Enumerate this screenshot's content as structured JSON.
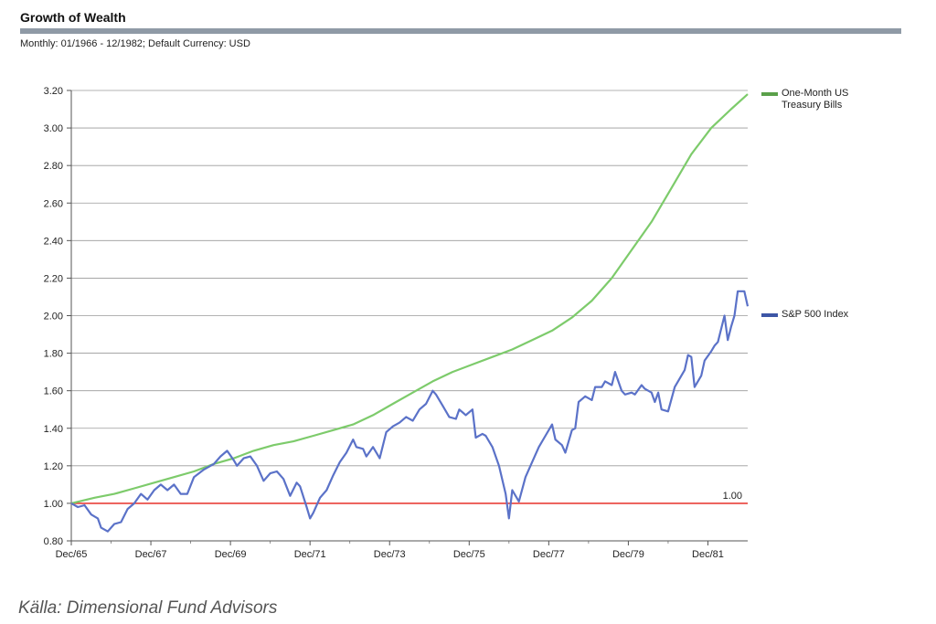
{
  "header": {
    "title": "Growth of Wealth",
    "subtitle": "Monthly: 01/1966 - 12/1982; Default Currency: USD"
  },
  "footer": {
    "source": "Källa: Dimensional Fund Advisors"
  },
  "chart_data": {
    "type": "line",
    "xlim": [
      1965.917,
      1982.917
    ],
    "ylim": [
      0.8,
      3.2
    ],
    "y_ticks": [
      "0.80",
      "1.00",
      "1.20",
      "1.40",
      "1.60",
      "1.80",
      "2.00",
      "2.20",
      "2.40",
      "2.60",
      "2.80",
      "3.00",
      "3.20"
    ],
    "x_ticks": [
      "Dec/65",
      "Dec/67",
      "Dec/69",
      "Dec/71",
      "Dec/73",
      "Dec/75",
      "Dec/77",
      "Dec/79",
      "Dec/81"
    ],
    "grid": true,
    "legend_position": "right",
    "reference_line": {
      "value": 1.0,
      "label": "1.00",
      "color": "#e8413a"
    },
    "series": [
      {
        "name": "One-Month US Treasury Bills",
        "legend_lines": [
          "One-Month US",
          "Treasury Bills"
        ],
        "color": "#7dcb6b",
        "legend_color": "#5aa04a",
        "points": [
          [
            1965.917,
            1.0
          ],
          [
            1966.5,
            1.03
          ],
          [
            1967.0,
            1.05
          ],
          [
            1967.5,
            1.08
          ],
          [
            1968.0,
            1.11
          ],
          [
            1968.5,
            1.14
          ],
          [
            1969.0,
            1.17
          ],
          [
            1969.5,
            1.21
          ],
          [
            1970.0,
            1.24
          ],
          [
            1970.5,
            1.28
          ],
          [
            1971.0,
            1.31
          ],
          [
            1971.5,
            1.33
          ],
          [
            1972.0,
            1.36
          ],
          [
            1972.5,
            1.39
          ],
          [
            1973.0,
            1.42
          ],
          [
            1973.5,
            1.47
          ],
          [
            1974.0,
            1.53
          ],
          [
            1974.5,
            1.59
          ],
          [
            1975.0,
            1.65
          ],
          [
            1975.5,
            1.7
          ],
          [
            1976.0,
            1.74
          ],
          [
            1976.5,
            1.78
          ],
          [
            1977.0,
            1.82
          ],
          [
            1977.5,
            1.87
          ],
          [
            1978.0,
            1.92
          ],
          [
            1978.5,
            1.99
          ],
          [
            1979.0,
            2.08
          ],
          [
            1979.5,
            2.2
          ],
          [
            1980.0,
            2.35
          ],
          [
            1980.5,
            2.5
          ],
          [
            1981.0,
            2.68
          ],
          [
            1981.5,
            2.86
          ],
          [
            1982.0,
            3.0
          ],
          [
            1982.5,
            3.1
          ],
          [
            1982.917,
            3.18
          ]
        ]
      },
      {
        "name": "S&P 500 Index",
        "legend_lines": [
          "S&P 500 Index"
        ],
        "color": "#5b72c8",
        "legend_color": "#3d56a6",
        "points": [
          [
            1965.917,
            1.0
          ],
          [
            1966.083,
            0.98
          ],
          [
            1966.25,
            0.99
          ],
          [
            1966.417,
            0.94
          ],
          [
            1966.583,
            0.92
          ],
          [
            1966.667,
            0.87
          ],
          [
            1966.833,
            0.85
          ],
          [
            1967.0,
            0.89
          ],
          [
            1967.167,
            0.9
          ],
          [
            1967.333,
            0.97
          ],
          [
            1967.5,
            1.0
          ],
          [
            1967.667,
            1.05
          ],
          [
            1967.833,
            1.02
          ],
          [
            1968.0,
            1.07
          ],
          [
            1968.167,
            1.1
          ],
          [
            1968.333,
            1.07
          ],
          [
            1968.5,
            1.1
          ],
          [
            1968.667,
            1.05
          ],
          [
            1968.833,
            1.05
          ],
          [
            1969.0,
            1.14
          ],
          [
            1969.25,
            1.18
          ],
          [
            1969.5,
            1.21
          ],
          [
            1969.667,
            1.25
          ],
          [
            1969.833,
            1.28
          ],
          [
            1970.0,
            1.23
          ],
          [
            1970.083,
            1.2
          ],
          [
            1970.25,
            1.24
          ],
          [
            1970.417,
            1.25
          ],
          [
            1970.583,
            1.2
          ],
          [
            1970.75,
            1.12
          ],
          [
            1970.917,
            1.16
          ],
          [
            1971.083,
            1.17
          ],
          [
            1971.25,
            1.13
          ],
          [
            1971.417,
            1.04
          ],
          [
            1971.583,
            1.11
          ],
          [
            1971.667,
            1.09
          ],
          [
            1971.833,
            0.98
          ],
          [
            1971.917,
            0.92
          ],
          [
            1972.0,
            0.95
          ],
          [
            1972.167,
            1.03
          ],
          [
            1972.333,
            1.07
          ],
          [
            1972.5,
            1.15
          ],
          [
            1972.667,
            1.22
          ],
          [
            1972.833,
            1.27
          ],
          [
            1973.0,
            1.34
          ],
          [
            1973.083,
            1.3
          ],
          [
            1973.25,
            1.29
          ],
          [
            1973.333,
            1.25
          ],
          [
            1973.5,
            1.3
          ],
          [
            1973.667,
            1.24
          ],
          [
            1973.833,
            1.38
          ],
          [
            1974.0,
            1.41
          ],
          [
            1974.167,
            1.43
          ],
          [
            1974.333,
            1.46
          ],
          [
            1974.5,
            1.44
          ],
          [
            1974.667,
            1.5
          ],
          [
            1974.833,
            1.53
          ],
          [
            1975.0,
            1.6
          ],
          [
            1975.083,
            1.58
          ],
          [
            1975.25,
            1.52
          ],
          [
            1975.417,
            1.46
          ],
          [
            1975.583,
            1.45
          ],
          [
            1975.667,
            1.5
          ],
          [
            1975.833,
            1.47
          ],
          [
            1976.0,
            1.5
          ],
          [
            1976.083,
            1.35
          ],
          [
            1976.25,
            1.37
          ],
          [
            1976.333,
            1.36
          ],
          [
            1976.5,
            1.3
          ],
          [
            1976.667,
            1.2
          ],
          [
            1976.833,
            1.05
          ],
          [
            1976.917,
            0.92
          ],
          [
            1977.0,
            1.07
          ],
          [
            1977.167,
            1.01
          ],
          [
            1977.333,
            1.14
          ],
          [
            1977.5,
            1.22
          ],
          [
            1977.667,
            1.3
          ],
          [
            1977.833,
            1.36
          ],
          [
            1978.0,
            1.42
          ],
          [
            1978.083,
            1.34
          ],
          [
            1978.25,
            1.31
          ],
          [
            1978.333,
            1.27
          ],
          [
            1978.5,
            1.39
          ],
          [
            1978.583,
            1.4
          ],
          [
            1978.667,
            1.54
          ],
          [
            1978.833,
            1.57
          ],
          [
            1979.0,
            1.55
          ],
          [
            1979.083,
            1.62
          ],
          [
            1979.25,
            1.62
          ],
          [
            1979.333,
            1.65
          ],
          [
            1979.5,
            1.63
          ],
          [
            1979.583,
            1.7
          ],
          [
            1979.75,
            1.6
          ],
          [
            1979.833,
            1.58
          ],
          [
            1980.0,
            1.59
          ],
          [
            1980.083,
            1.58
          ],
          [
            1980.25,
            1.63
          ],
          [
            1980.333,
            1.61
          ],
          [
            1980.5,
            1.59
          ],
          [
            1980.583,
            1.54
          ],
          [
            1980.667,
            1.59
          ],
          [
            1980.75,
            1.5
          ],
          [
            1980.917,
            1.49
          ],
          [
            1981.083,
            1.62
          ],
          [
            1981.167,
            1.65
          ],
          [
            1981.333,
            1.71
          ],
          [
            1981.417,
            1.79
          ],
          [
            1981.5,
            1.78
          ],
          [
            1981.583,
            1.62
          ],
          [
            1981.75,
            1.68
          ],
          [
            1981.833,
            1.76
          ],
          [
            1982.0,
            1.81
          ],
          [
            1982.083,
            1.84
          ],
          [
            1982.167,
            1.86
          ],
          [
            1982.333,
            2.0
          ],
          [
            1982.417,
            1.87
          ],
          [
            1982.5,
            1.94
          ],
          [
            1982.583,
            2.0
          ],
          [
            1982.667,
            2.13
          ],
          [
            1982.833,
            2.13
          ],
          [
            1982.917,
            2.05
          ]
        ]
      }
    ]
  }
}
